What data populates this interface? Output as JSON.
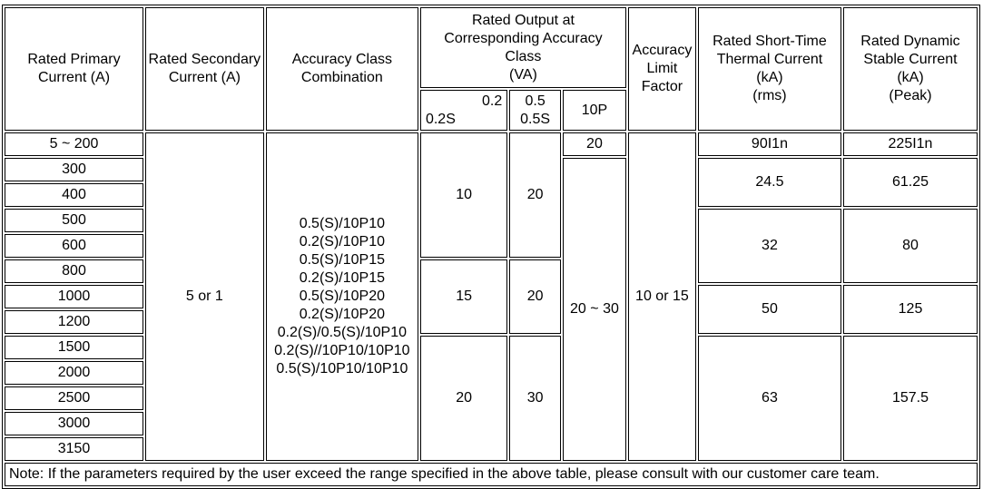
{
  "headers": {
    "primary": "Rated Primary Current (A)",
    "secondary": "Rated Secondary Current (A)",
    "combination": "Accuracy Class Combination",
    "output": [
      "Rated Output at",
      "Corresponding Accuracy",
      "Class",
      "(VA)"
    ],
    "sub_02": [
      "0.2",
      "0.2S"
    ],
    "sub_05": [
      "0.5",
      "0.5S"
    ],
    "sub_10p": "10P",
    "alf": "Accuracy Limit Factor",
    "thermal": [
      "Rated Short-Time",
      "Thermal Current",
      "(kA)",
      "(rms)"
    ],
    "dynamic": [
      "Rated Dynamic",
      "Stable Current",
      "(kA)",
      "(Peak)"
    ]
  },
  "primary_currents": [
    "5 ~ 200",
    "300",
    "400",
    "500",
    "600",
    "800",
    "1000",
    "1200",
    "1500",
    "2000",
    "2500",
    "3000",
    "3150"
  ],
  "secondary_current": "5 or 1",
  "combinations": [
    "0.5(S)/10P10",
    "0.2(S)/10P10",
    "0.5(S)/10P15",
    "0.2(S)/10P15",
    "0.5(S)/10P20",
    "0.2(S)/10P20",
    "0.2(S)/0.5(S)/10P10",
    "0.2(S)//10P10/10P10",
    "0.5(S)/10P10/10P10"
  ],
  "output_02": [
    "10",
    "15",
    "20"
  ],
  "output_05": [
    "20",
    "20",
    "30"
  ],
  "output_10p": [
    "20",
    "20 ~ 30"
  ],
  "alf": "10 or 15",
  "thermal": [
    "90I1n",
    "24.5",
    "32",
    "50",
    "63"
  ],
  "dynamic": [
    "225I1n",
    "61.25",
    "80",
    "125",
    "157.5"
  ],
  "note": "Note: If the parameters required by the user exceed the range specified in the above table, please consult with our customer care team."
}
